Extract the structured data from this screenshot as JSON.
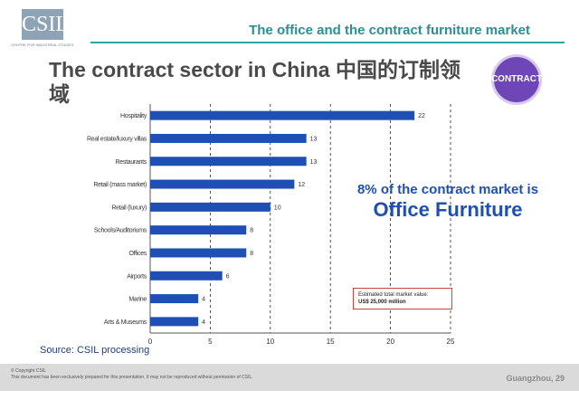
{
  "header": {
    "title": "The office and the contract furniture market"
  },
  "logo": {
    "mark": "CSIL",
    "subtitle": "CENTRE FOR INDUSTRIAL STUDIES"
  },
  "slide_title": "The contract sector in China 中国的订制领域",
  "badge": {
    "label": "CONTRACT"
  },
  "callout": {
    "line1": "8% of the contract market is",
    "line2": "Office Furniture"
  },
  "estimate_box": {
    "line1": "Estimated total market value:",
    "line2": "US$ 25,000 million"
  },
  "source": "Source: CSIL processing",
  "footer": {
    "copyright": "© Copyright CSIL",
    "notice": "This document has been exclusively prepared for this presentation. It may not be reproduced without permission of CSIL.",
    "location_page": "Guangzhou, 29"
  },
  "chart_data": {
    "type": "bar",
    "orientation": "horizontal",
    "categories": [
      "Hospitality",
      "Real estate/luxury villas",
      "Restaurants",
      "Retail (mass market)",
      "Retail (luxury)",
      "Schools/Auditoriums",
      "Offices",
      "Airports",
      "Marine",
      "Arts & Museums"
    ],
    "values": [
      22,
      13,
      13,
      12,
      10,
      8,
      8,
      6,
      4,
      4
    ],
    "data_labels": [
      "22",
      "13",
      "13",
      "12",
      "10",
      "8",
      "8",
      "6",
      "4",
      "4"
    ],
    "xlim": [
      0,
      25
    ],
    "xticks": [
      "0",
      "5",
      "10",
      "15",
      "20",
      "25"
    ],
    "grid": "vertical dashed",
    "bar_color": "#1f4fb4"
  }
}
